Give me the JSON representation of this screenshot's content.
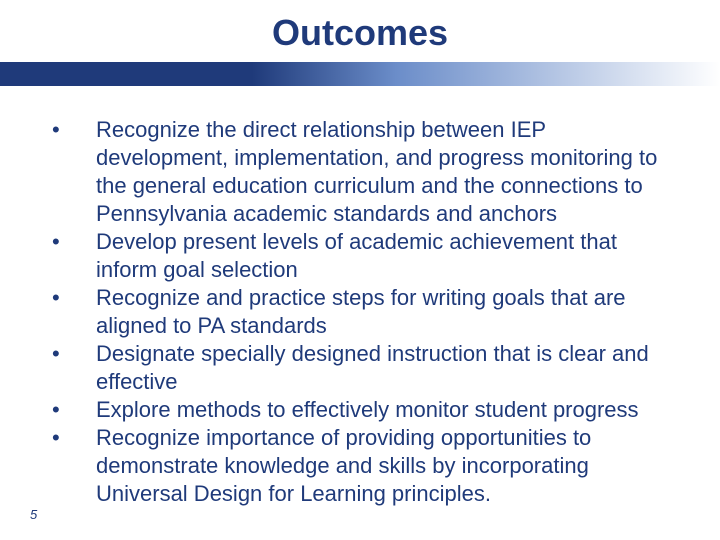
{
  "slide": {
    "title": "Outcomes",
    "title_color": "#1f3a7a",
    "title_fontsize": 36,
    "bar_gradient_start": "#1f3a7a",
    "bar_gradient_end": "#ffffff",
    "bullets": [
      "Recognize the direct relationship between IEP development, implementation, and progress monitoring to the general education curriculum and the connections to Pennsylvania academic standards and anchors",
      "Develop present levels of academic achievement that inform goal selection",
      "Recognize and practice steps for writing goals that are aligned to PA standards",
      "Designate specially designed instruction that is clear and effective",
      "Explore methods to effectively monitor student progress",
      "Recognize importance of  providing opportunities to demonstrate knowledge and skills by incorporating Universal Design for Learning principles."
    ],
    "bullet_color": "#1f3a7a",
    "bullet_fontsize": 22,
    "page_number": "5",
    "background_color": "#ffffff"
  }
}
